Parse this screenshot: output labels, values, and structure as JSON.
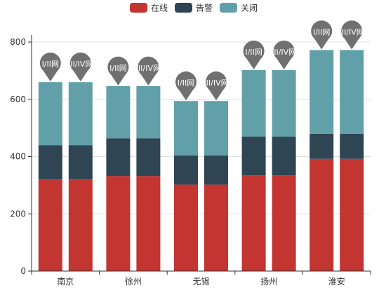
{
  "chart_data": {
    "type": "bar",
    "stacked": true,
    "title": "",
    "xlabel": "",
    "ylabel": "",
    "ylim": [
      0,
      800
    ],
    "yticks": [
      0,
      200,
      400,
      600,
      800
    ],
    "grid": true,
    "legend_position": "top-center",
    "categories": [
      "南京",
      "徐州",
      "无锡",
      "扬州",
      "淮安"
    ],
    "stack_groups": [
      "I/II网",
      "III/IV网"
    ],
    "series": [
      {
        "name": "在线",
        "color": "#c23531",
        "values": {
          "I/II网": [
            320,
            332,
            302,
            335,
            392
          ],
          "III/IV网": [
            320,
            332,
            302,
            335,
            392
          ]
        }
      },
      {
        "name": "告警",
        "color": "#2f4554",
        "values": {
          "I/II网": [
            120,
            132,
            102,
            135,
            88
          ],
          "III/IV网": [
            120,
            132,
            102,
            135,
            88
          ]
        }
      },
      {
        "name": "关闭",
        "color": "#61a0a8",
        "values": {
          "I/II网": [
            220,
            182,
            190,
            232,
            292
          ],
          "III/IV网": [
            220,
            182,
            190,
            232,
            292
          ]
        }
      }
    ],
    "markers": {
      "icon": "map-pin-icon",
      "color": "#707070",
      "text_color": "#ffffff"
    }
  }
}
